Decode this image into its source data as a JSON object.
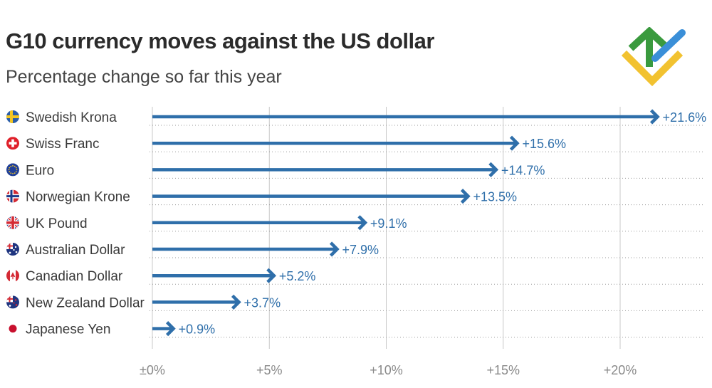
{
  "header": {
    "title": "G10 currency moves against the US dollar",
    "subtitle": "Percentage change so far this year"
  },
  "colors": {
    "bar": "#2f6faa",
    "value_text": "#2f6faa",
    "grid": "#c8c8c8",
    "logo_green": "#3a9a3e",
    "logo_yellow": "#f2c230",
    "logo_blue": "#3a8fd8"
  },
  "chart_data": {
    "type": "bar",
    "orientation": "horizontal",
    "title": "G10 currency moves against the US dollar",
    "subtitle": "Percentage change so far this year",
    "categories": [
      "Swedish Krona",
      "Swiss Franc",
      "Euro",
      "Norwegian Krone",
      "UK Pound",
      "Australian Dollar",
      "Canadian Dollar",
      "New Zealand Dollar",
      "Japanese Yen"
    ],
    "values": [
      21.6,
      15.6,
      14.7,
      13.5,
      9.1,
      7.9,
      5.2,
      3.7,
      0.9
    ],
    "value_labels": [
      "+21.6%",
      "+15.6%",
      "+14.7%",
      "+13.5%",
      "+9.1%",
      "+7.9%",
      "+5.2%",
      "+3.7%",
      "+0.9%"
    ],
    "flag_icons": [
      "sweden-flag-icon",
      "switzerland-flag-icon",
      "eu-flag-icon",
      "norway-flag-icon",
      "uk-flag-icon",
      "australia-flag-icon",
      "canada-flag-icon",
      "new-zealand-flag-icon",
      "japan-flag-icon"
    ],
    "xlim": [
      0,
      23.5
    ],
    "ticks": [
      0,
      5,
      10,
      15,
      20
    ],
    "tick_labels": [
      "±0%",
      "+5%",
      "+10%",
      "+15%",
      "+20%"
    ],
    "xlabel": "",
    "ylabel": "",
    "grid": true
  }
}
